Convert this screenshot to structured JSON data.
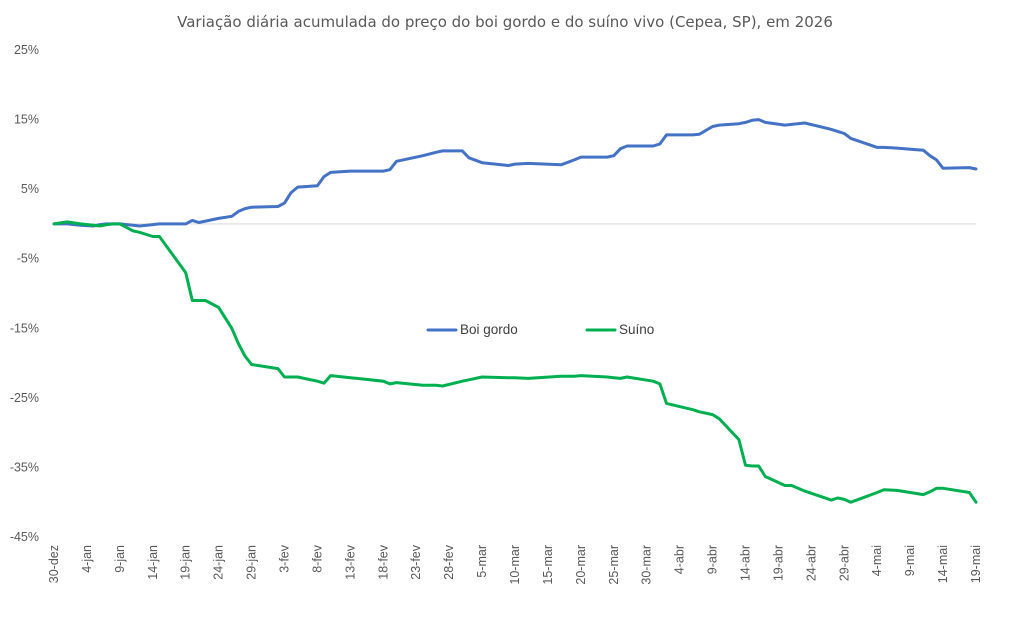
{
  "chart_data": {
    "type": "line",
    "title": "Variação diária acumulada do preço do boi gordo e do suíno vivo (Cepea, SP), em 2026",
    "xlabel": "",
    "ylabel": "",
    "y_unit": "%",
    "ylim": [
      -45,
      25
    ],
    "y_ticks": [
      25,
      15,
      5,
      -5,
      -15,
      -25,
      -35,
      -45
    ],
    "y_tick_labels": [
      "25%",
      "15%",
      "5%",
      "-5%",
      "-15%",
      "-25%",
      "-35%",
      "-45%"
    ],
    "x_tick_labels": [
      "30-dez",
      "4-jan",
      "9-jan",
      "14-jan",
      "19-jan",
      "24-jan",
      "29-jan",
      "3-fev",
      "8-fev",
      "13-fev",
      "18-fev",
      "23-fev",
      "28-fev",
      "5-mar",
      "10-mar",
      "15-mar",
      "20-mar",
      "25-mar",
      "30-mar",
      "4-abr",
      "9-abr",
      "14-abr",
      "19-abr",
      "24-abr",
      "29-abr",
      "4-mai",
      "9-mai",
      "14-mai",
      "19-mai"
    ],
    "x_tick_days": [
      0,
      5,
      10,
      15,
      20,
      25,
      30,
      35,
      40,
      45,
      50,
      55,
      60,
      65,
      70,
      75,
      80,
      85,
      90,
      95,
      100,
      105,
      110,
      115,
      120,
      125,
      130,
      135,
      140
    ],
    "x_dates": [
      "2025-12-30",
      "2026-01-01",
      "2026-01-03",
      "2026-01-05",
      "2026-01-06",
      "2026-01-07",
      "2026-01-08",
      "2026-01-09",
      "2026-01-11",
      "2026-01-12",
      "2026-01-14",
      "2026-01-15",
      "2026-01-19",
      "2026-01-20",
      "2026-01-21",
      "2026-01-22",
      "2026-01-24",
      "2026-01-26",
      "2026-01-27",
      "2026-01-28",
      "2026-01-29",
      "2026-02-02",
      "2026-02-03",
      "2026-02-04",
      "2026-02-05",
      "2026-02-08",
      "2026-02-09",
      "2026-02-10",
      "2026-02-13",
      "2026-02-14",
      "2026-02-18",
      "2026-02-19",
      "2026-02-20",
      "2026-02-24",
      "2026-02-26",
      "2026-02-27",
      "2026-03-02",
      "2026-03-03",
      "2026-03-05",
      "2026-03-09",
      "2026-03-10",
      "2026-03-12",
      "2026-03-17",
      "2026-03-19",
      "2026-03-20",
      "2026-03-24",
      "2026-03-25",
      "2026-03-26",
      "2026-03-27",
      "2026-03-31",
      "2026-04-01",
      "2026-04-02",
      "2026-04-06",
      "2026-04-07",
      "2026-04-09",
      "2026-04-10",
      "2026-04-13",
      "2026-04-14",
      "2026-04-15",
      "2026-04-16",
      "2026-04-17",
      "2026-04-20",
      "2026-04-21",
      "2026-04-23",
      "2026-04-27",
      "2026-04-28",
      "2026-04-29",
      "2026-04-30",
      "2026-05-04",
      "2026-05-05",
      "2026-05-07",
      "2026-05-11",
      "2026-05-12",
      "2026-05-13",
      "2026-05-14",
      "2026-05-18",
      "2026-05-19"
    ],
    "series": [
      {
        "name": "Boi gordo",
        "color": "#4472C4",
        "values": [
          0.0,
          0.0,
          -0.2,
          -0.3,
          -0.1,
          0.0,
          0.0,
          0.0,
          -0.2,
          -0.3,
          -0.1,
          0.0,
          0.0,
          0.5,
          0.2,
          0.4,
          0.8,
          1.1,
          1.8,
          2.2,
          2.4,
          2.5,
          3.0,
          4.5,
          5.3,
          5.5,
          6.8,
          7.4,
          7.6,
          7.6,
          7.6,
          7.8,
          9.0,
          9.8,
          10.3,
          10.5,
          10.5,
          9.5,
          8.8,
          8.4,
          8.6,
          8.7,
          8.5,
          9.2,
          9.6,
          9.6,
          9.8,
          10.8,
          11.2,
          11.2,
          11.5,
          12.8,
          12.8,
          12.9,
          14.0,
          14.2,
          14.4,
          14.6,
          14.9,
          15.0,
          14.6,
          14.2,
          14.3,
          14.5,
          13.6,
          13.3,
          13.0,
          12.3,
          11.0,
          11.0,
          10.9,
          10.6,
          9.8,
          9.2,
          8.0,
          8.1,
          7.9
        ]
      },
      {
        "name": "Suíno",
        "color": "#00B050",
        "values": [
          0.0,
          0.3,
          0.0,
          -0.2,
          -0.3,
          -0.1,
          0.0,
          0.0,
          -1.0,
          -1.2,
          -1.8,
          -1.8,
          -7.0,
          -11.0,
          -11.0,
          -11.0,
          -12.0,
          -15.0,
          -17.2,
          -19.0,
          -20.2,
          -20.8,
          -22.0,
          -22.0,
          -22.0,
          -22.6,
          -22.9,
          -21.8,
          -22.1,
          -22.2,
          -22.6,
          -23.0,
          -22.8,
          -23.2,
          -23.2,
          -23.3,
          -22.6,
          -22.4,
          -22.0,
          -22.1,
          -22.1,
          -22.2,
          -21.9,
          -21.9,
          -21.8,
          -22.0,
          -22.1,
          -22.2,
          -22.0,
          -22.6,
          -23.0,
          -25.8,
          -26.7,
          -27.0,
          -27.4,
          -28.0,
          -31.0,
          -34.7,
          -34.8,
          -34.8,
          -36.3,
          -37.6,
          -37.6,
          -38.4,
          -39.7,
          -39.4,
          -39.6,
          -40.0,
          -38.6,
          -38.2,
          -38.3,
          -38.9,
          -38.5,
          -38.0,
          -38.0,
          -38.6,
          -40.0
        ]
      }
    ],
    "zero_line": true,
    "grid": false,
    "legend_position": "inside-center"
  }
}
